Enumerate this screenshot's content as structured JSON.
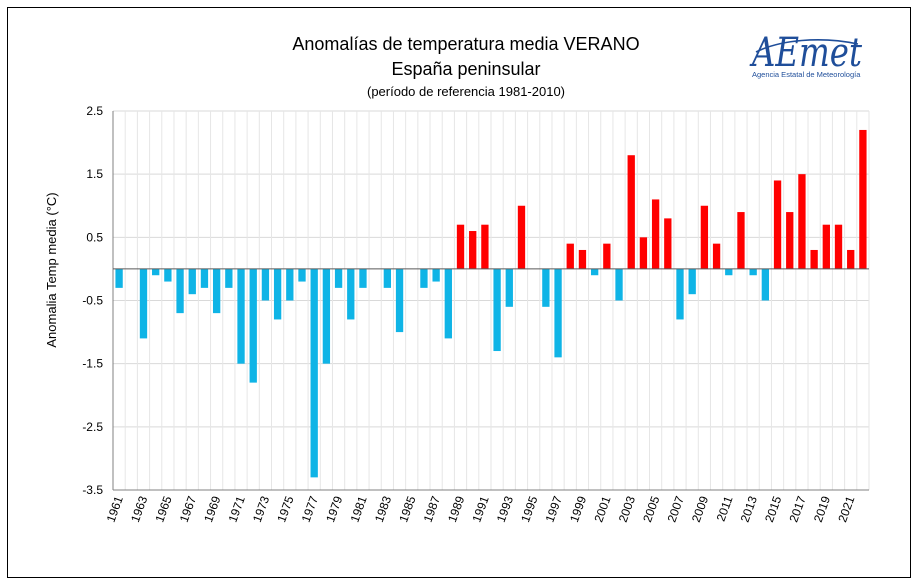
{
  "chart_data": {
    "type": "bar",
    "title": "Anomalías de temperatura media VERANO",
    "subtitle": "España peninsular",
    "note": "(período de referencia 1981-2010)",
    "xlabel": "",
    "ylabel": "Anomalia Temp media (°C)",
    "ylim": [
      -3.5,
      2.5
    ],
    "yticks": [
      2.5,
      1.5,
      0.5,
      -0.5,
      -1.5,
      -2.5,
      -3.5
    ],
    "ytick_labels": [
      "2.5",
      "1.5",
      "0.5",
      "-0.5",
      "-1.5",
      "-2.5",
      "-3.5"
    ],
    "xtick_labels": [
      "1961",
      "1963",
      "1965",
      "1967",
      "1969",
      "1971",
      "1973",
      "1975",
      "1977",
      "1979",
      "1981",
      "1983",
      "1985",
      "1987",
      "1989",
      "1991",
      "1993",
      "1995",
      "1997",
      "1999",
      "2001",
      "2003",
      "2005",
      "2007",
      "2009",
      "2011",
      "2013",
      "2015",
      "2017",
      "2019",
      "2021"
    ],
    "grid": true,
    "colors": {
      "positive": "#ff0000",
      "negative": "#0fb4e6"
    },
    "categories": [
      1961,
      1962,
      1963,
      1964,
      1965,
      1966,
      1967,
      1968,
      1969,
      1970,
      1971,
      1972,
      1973,
      1974,
      1975,
      1976,
      1977,
      1978,
      1979,
      1980,
      1981,
      1982,
      1983,
      1984,
      1985,
      1986,
      1987,
      1988,
      1989,
      1990,
      1991,
      1992,
      1993,
      1994,
      1995,
      1996,
      1997,
      1998,
      1999,
      2000,
      2001,
      2002,
      2003,
      2004,
      2005,
      2006,
      2007,
      2008,
      2009,
      2010,
      2011,
      2012,
      2013,
      2014,
      2015,
      2016,
      2017,
      2018,
      2019,
      2020,
      2021,
      2022
    ],
    "values": [
      -0.3,
      0,
      -1.1,
      -0.1,
      -0.2,
      -0.7,
      -0.4,
      -0.3,
      -0.7,
      -0.3,
      -1.5,
      -1.8,
      -0.5,
      -0.8,
      -0.5,
      -0.2,
      -3.3,
      -1.5,
      -0.3,
      -0.8,
      -0.3,
      0,
      -0.3,
      -1.0,
      0,
      -0.3,
      -0.2,
      -1.1,
      0.7,
      0.6,
      0.7,
      -1.3,
      -0.6,
      1.0,
      0,
      -0.6,
      -1.4,
      0.4,
      0.3,
      -0.1,
      0.4,
      -0.5,
      1.8,
      0.5,
      1.1,
      0.8,
      -0.8,
      -0.4,
      1.0,
      0.4,
      -0.1,
      0.9,
      -0.1,
      -0.5,
      1.4,
      0.9,
      1.5,
      0.3,
      0.7,
      0.7,
      0.3,
      2.2
    ]
  },
  "logo": {
    "name": "AEMET logo",
    "text": "AEmet",
    "tagline": "Agencia Estatal de Meteorología",
    "color": "#1f4e9a"
  }
}
